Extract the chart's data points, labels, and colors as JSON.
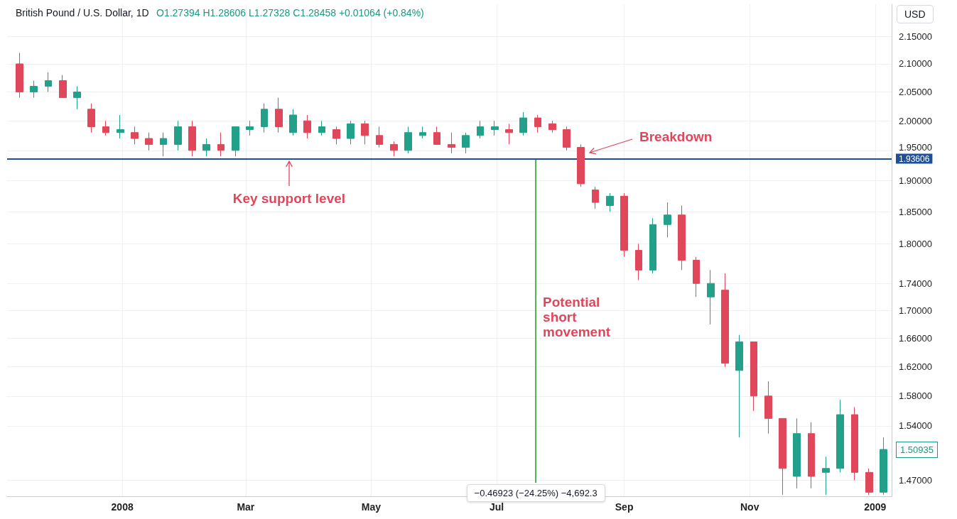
{
  "chart_data": {
    "type": "candlestick",
    "title": "British Pound / U.S. Dollar, 1D",
    "subtitle": "O1.27394 H1.28606 L1.27328 C1.28458 +0.01064 (+0.84%)",
    "ylabel": "USD",
    "x": [
      "2007-11-12",
      "2007-11-19",
      "2007-11-26",
      "2007-12-03",
      "2007-12-10",
      "2007-12-17",
      "2007-12-24",
      "2007-12-31",
      "2008-01-07",
      "2008-01-14",
      "2008-01-21",
      "2008-01-28",
      "2008-02-04",
      "2008-02-11",
      "2008-02-18",
      "2008-02-25",
      "2008-03-03",
      "2008-03-10",
      "2008-03-17",
      "2008-03-24",
      "2008-03-31",
      "2008-04-07",
      "2008-04-14",
      "2008-04-21",
      "2008-04-28",
      "2008-05-05",
      "2008-05-12",
      "2008-05-19",
      "2008-05-26",
      "2008-06-02",
      "2008-06-09",
      "2008-06-16",
      "2008-06-23",
      "2008-06-30",
      "2008-07-07",
      "2008-07-14",
      "2008-07-21",
      "2008-07-28",
      "2008-08-04",
      "2008-08-11",
      "2008-08-18",
      "2008-08-25",
      "2008-09-01",
      "2008-09-08",
      "2008-09-15",
      "2008-09-22",
      "2008-09-29",
      "2008-10-06",
      "2008-10-13",
      "2008-10-20",
      "2008-10-27",
      "2008-11-03",
      "2008-11-10",
      "2008-11-17",
      "2008-11-24",
      "2008-12-01",
      "2008-12-08",
      "2008-12-15",
      "2008-12-22",
      "2008-12-29",
      "2009-01-05"
    ],
    "ohlc": [
      [
        2.1,
        2.12,
        2.04,
        2.05
      ],
      [
        2.05,
        2.07,
        2.04,
        2.06
      ],
      [
        2.06,
        2.085,
        2.05,
        2.07
      ],
      [
        2.07,
        2.08,
        2.04,
        2.04
      ],
      [
        2.04,
        2.06,
        2.02,
        2.05
      ],
      [
        2.02,
        2.03,
        1.98,
        1.99
      ],
      [
        1.99,
        2.0,
        1.975,
        1.98
      ],
      [
        1.98,
        2.01,
        1.97,
        1.985
      ],
      [
        1.98,
        1.99,
        1.96,
        1.97
      ],
      [
        1.97,
        1.98,
        1.95,
        1.96
      ],
      [
        1.96,
        1.98,
        1.94,
        1.97
      ],
      [
        1.96,
        2.0,
        1.95,
        1.99
      ],
      [
        1.99,
        2.0,
        1.94,
        1.95
      ],
      [
        1.95,
        1.97,
        1.94,
        1.96
      ],
      [
        1.96,
        1.98,
        1.94,
        1.95
      ],
      [
        1.95,
        1.99,
        1.94,
        1.99
      ],
      [
        1.985,
        2.0,
        1.975,
        1.99
      ],
      [
        1.99,
        2.03,
        1.98,
        2.02
      ],
      [
        2.02,
        2.04,
        1.98,
        1.99
      ],
      [
        1.98,
        2.02,
        1.975,
        2.01
      ],
      [
        2.0,
        2.01,
        1.97,
        1.98
      ],
      [
        1.98,
        2.0,
        1.975,
        1.99
      ],
      [
        1.985,
        1.99,
        1.96,
        1.97
      ],
      [
        1.97,
        2.0,
        1.96,
        1.995
      ],
      [
        1.995,
        2.0,
        1.96,
        1.975
      ],
      [
        1.975,
        1.99,
        1.955,
        1.96
      ],
      [
        1.96,
        1.965,
        1.94,
        1.95
      ],
      [
        1.95,
        1.99,
        1.945,
        1.98
      ],
      [
        1.975,
        1.99,
        1.97,
        1.98
      ],
      [
        1.98,
        1.99,
        1.96,
        1.96
      ],
      [
        1.96,
        1.98,
        1.945,
        1.955
      ],
      [
        1.955,
        1.98,
        1.945,
        1.975
      ],
      [
        1.975,
        2.0,
        1.97,
        1.99
      ],
      [
        1.985,
        2.0,
        1.975,
        1.99
      ],
      [
        1.985,
        1.995,
        1.96,
        1.98
      ],
      [
        1.98,
        2.015,
        1.975,
        2.005
      ],
      [
        2.005,
        2.01,
        1.98,
        1.99
      ],
      [
        1.995,
        2.0,
        1.98,
        1.985
      ],
      [
        1.985,
        1.99,
        1.95,
        1.955
      ],
      [
        1.955,
        1.96,
        1.89,
        1.895
      ],
      [
        1.885,
        1.89,
        1.855,
        1.865
      ],
      [
        1.86,
        1.88,
        1.85,
        1.875
      ],
      [
        1.875,
        1.88,
        1.78,
        1.79
      ],
      [
        1.79,
        1.8,
        1.745,
        1.76
      ],
      [
        1.76,
        1.84,
        1.755,
        1.83
      ],
      [
        1.83,
        1.865,
        1.81,
        1.845
      ],
      [
        1.845,
        1.86,
        1.76,
        1.775
      ],
      [
        1.775,
        1.78,
        1.72,
        1.74
      ],
      [
        1.72,
        1.76,
        1.68,
        1.74
      ],
      [
        1.73,
        1.755,
        1.62,
        1.625
      ],
      [
        1.615,
        1.665,
        1.525,
        1.655
      ],
      [
        1.655,
        1.655,
        1.56,
        1.58
      ],
      [
        1.58,
        1.6,
        1.53,
        1.55
      ],
      [
        1.55,
        1.55,
        1.452,
        1.485
      ],
      [
        1.475,
        1.55,
        1.46,
        1.53
      ],
      [
        1.53,
        1.545,
        1.46,
        1.475
      ],
      [
        1.48,
        1.5,
        1.452,
        1.485
      ],
      [
        1.485,
        1.575,
        1.48,
        1.555
      ],
      [
        1.555,
        1.565,
        1.47,
        1.48
      ],
      [
        1.48,
        1.485,
        1.452,
        1.455
      ],
      [
        1.455,
        1.525,
        1.452,
        1.50935
      ]
    ],
    "colors": [
      "#e0475a",
      "#22a08a",
      "#22a08a",
      "#e0475a",
      "#22a08a",
      "#e0475a",
      "#e0475a",
      "#22a08a",
      "#e0475a",
      "#e0475a",
      "#22a08a",
      "#22a08a",
      "#e0475a",
      "#22a08a",
      "#e0475a",
      "#22a08a",
      "#22a08a",
      "#22a08a",
      "#e0475a",
      "#22a08a",
      "#e0475a",
      "#22a08a",
      "#e0475a",
      "#22a08a",
      "#e0475a",
      "#e0475a",
      "#e0475a",
      "#22a08a",
      "#22a08a",
      "#e0475a",
      "#e0475a",
      "#22a08a",
      "#22a08a",
      "#22a08a",
      "#e0475a",
      "#22a08a",
      "#e0475a",
      "#e0475a",
      "#e0475a",
      "#e0475a",
      "#e0475a",
      "#22a08a",
      "#e0475a",
      "#e0475a",
      "#22a08a",
      "#22a08a",
      "#e0475a",
      "#e0475a",
      "#22a08a",
      "#e0475a",
      "#22a08a",
      "#e0475a",
      "#e0475a",
      "#e0475a",
      "#22a08a",
      "#e0475a",
      "#22a08a",
      "#22a08a",
      "#e0475a",
      "#e0475a",
      "#22a08a"
    ],
    "series": [
      {
        "type": "line",
        "x": [
          "2008-07-20",
          "2008-07-20"
        ],
        "values": [
          1.93606,
          1.46683
        ],
        "color": "#4caf50",
        "marker": "none"
      }
    ],
    "xlim": [
      "2007-11-06",
      "2009-01-09"
    ],
    "xticks": [
      {
        "value": "2008-01-01",
        "label": "2008"
      },
      {
        "value": "2008-03-01",
        "label": "Mar"
      },
      {
        "value": "2008-05-01",
        "label": "May"
      },
      {
        "value": "2008-07-01",
        "label": "Jul"
      },
      {
        "value": "2008-09-01",
        "label": "Sep"
      },
      {
        "value": "2008-11-01",
        "label": "Nov"
      },
      {
        "value": "2009-01-01",
        "label": "2009"
      }
    ],
    "ylim": [
      1.45,
      2.21
    ],
    "log": true,
    "yticks": [
      {
        "value": 1.47,
        "label": "1.47000"
      },
      {
        "value": 1.54,
        "label": "1.54000"
      },
      {
        "value": 1.58,
        "label": "1.58000"
      },
      {
        "value": 1.62,
        "label": "1.62000"
      },
      {
        "value": 1.66,
        "label": "1.66000"
      },
      {
        "value": 1.7,
        "label": "1.70000"
      },
      {
        "value": 1.74,
        "label": "1.74000"
      },
      {
        "value": 1.8,
        "label": "1.80000"
      },
      {
        "value": 1.85,
        "label": "1.85000"
      },
      {
        "value": 1.9,
        "label": "1.90000"
      },
      {
        "value": 1.95,
        "label": "1.95000"
      },
      {
        "value": 2.0,
        "label": "2.00000"
      },
      {
        "value": 2.05,
        "label": "2.05000"
      },
      {
        "value": 2.1,
        "label": "2.10000"
      },
      {
        "value": 2.15,
        "label": "2.15000"
      }
    ],
    "ref_lines": [
      {
        "axis": "y",
        "value": 1.93606,
        "label": "1.93606",
        "color": "#1e4f9c"
      }
    ],
    "annotations": [
      {
        "text": "Key support level",
        "x": "2008-03-22",
        "y": 1.93606
      },
      "Breakdown",
      {
        "text": "Potential short movement",
        "x": "2008-07-20",
        "y": 1.69
      },
      {
        "text": "−0.46923 (−24.25%) −4,692.3",
        "x": "2008-07-20",
        "y": 1.46683
      },
      {
        "text": "1.50935",
        "x": "2009-01-05",
        "y": 1.50935
      }
    ],
    "grid": true
  }
}
